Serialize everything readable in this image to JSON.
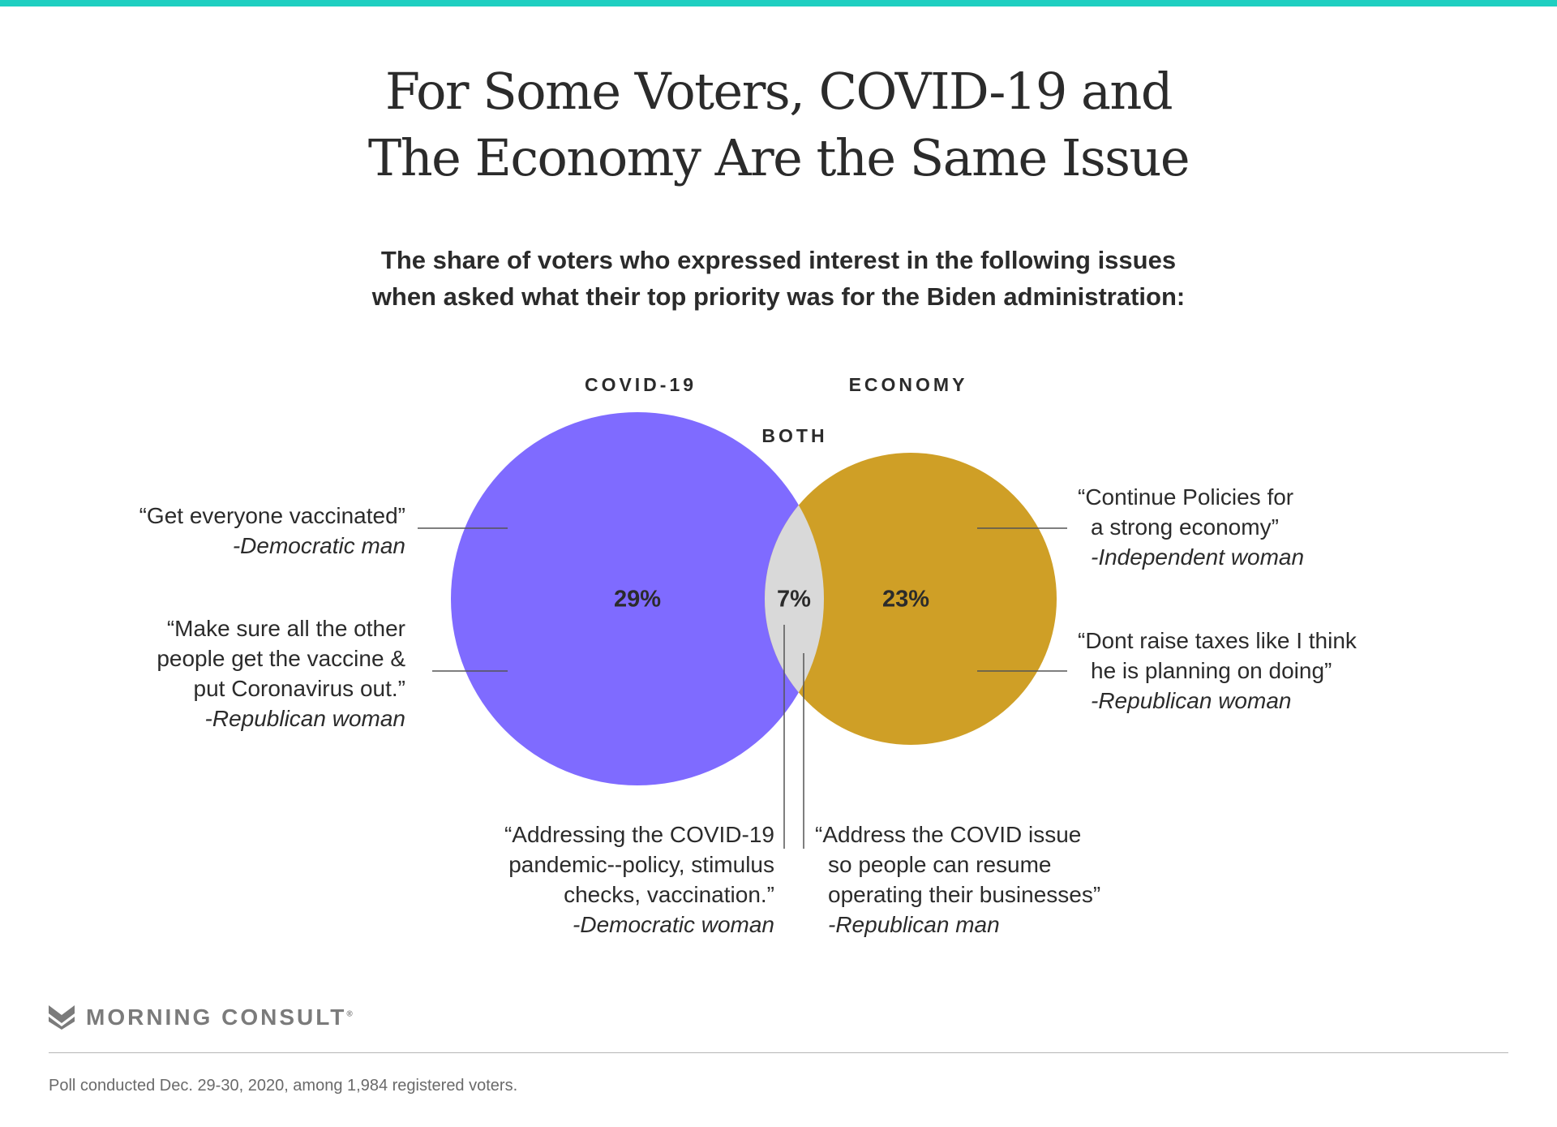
{
  "colors": {
    "accent_bar": "#1fcfc1",
    "covid": "#7f6bff",
    "economy": "#cf9f26",
    "both": "#d9d9d9",
    "leader_line": "#555555",
    "brand_grey": "#7b7b7b"
  },
  "title": {
    "line1": "For Some Voters, COVID-19 and",
    "line2": "The Economy Are the Same Issue"
  },
  "subtitle": {
    "line1": "The share of voters who expressed interest in the following issues",
    "line2": "when asked what their top priority was for the Biden administration:"
  },
  "venn": {
    "sets": [
      {
        "label": "COVID-19",
        "value": "29%"
      },
      {
        "label": "ECONOMY",
        "value": "23%"
      }
    ],
    "overlap": {
      "label": "BOTH",
      "value": "7%"
    }
  },
  "quotes": {
    "covid_1": {
      "lines": [
        "“Get everyone vaccinated”"
      ],
      "attribution": "-Democratic man"
    },
    "covid_2": {
      "lines": [
        "“Make sure all the other",
        "people get the vaccine &",
        "put Coronavirus out.”"
      ],
      "attribution": "-Republican woman"
    },
    "economy_1": {
      "lines": [
        "“Continue Policies for",
        "a strong economy”"
      ],
      "attribution": "-Independent woman"
    },
    "economy_2": {
      "lines": [
        "“Dont raise taxes like I think",
        "he is planning on doing”"
      ],
      "attribution": "-Republican woman"
    },
    "both_1": {
      "lines": [
        "“Addressing the COVID-19",
        "pandemic--policy, stimulus",
        "checks, vaccination.”"
      ],
      "attribution": "-Democratic woman"
    },
    "both_2": {
      "lines": [
        "“Address the COVID issue",
        "so people can resume",
        "operating their businesses”"
      ],
      "attribution": "-Republican man"
    }
  },
  "brand": {
    "name": "MORNING CONSULT",
    "reg": "®",
    "logo_icon": "morning-consult-m-logo"
  },
  "footnote": "Poll conducted Dec. 29-30, 2020, among 1,984 registered voters."
}
